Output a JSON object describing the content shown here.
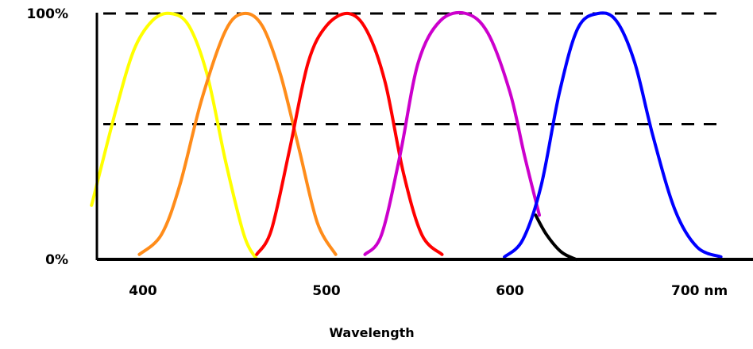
{
  "chart_data": {
    "type": "line",
    "title": "",
    "xlabel": "Wavelength",
    "ylabel": "",
    "x_unit": "nm",
    "xlim": [
      372,
      720
    ],
    "ylim": [
      0,
      100
    ],
    "x_ticks": [
      {
        "value": 400,
        "label": "400"
      },
      {
        "value": 500,
        "label": "500"
      },
      {
        "value": 600,
        "label": "600"
      },
      {
        "value": 700,
        "label": "700 nm"
      }
    ],
    "y_ticks": [
      {
        "value": 100,
        "label": "100%"
      },
      {
        "value": 0,
        "label": "0%"
      }
    ],
    "gridlines_y": [
      100,
      55
    ],
    "legend": "none",
    "series": [
      {
        "color": "#ffff00",
        "peak": 415,
        "x": [
          372,
          385,
          395,
          405,
          415,
          425,
          435,
          445,
          455,
          462
        ],
        "y": [
          22,
          60,
          85,
          97,
          100,
          95,
          75,
          40,
          10,
          0
        ]
      },
      {
        "color": "#ff8c1a",
        "peak": 455,
        "x": [
          398,
          410,
          420,
          432,
          445,
          455,
          465,
          475,
          485,
          495,
          505
        ],
        "y": [
          2,
          10,
          30,
          65,
          93,
          100,
          95,
          75,
          45,
          15,
          2
        ]
      },
      {
        "color": "#ff0000",
        "peak": 512,
        "x": [
          462,
          470,
          480,
          490,
          500,
          512,
          522,
          532,
          542,
          552,
          563
        ],
        "y": [
          2,
          12,
          45,
          80,
          95,
          100,
          93,
          72,
          35,
          10,
          2
        ]
      },
      {
        "color": "#cc00cc",
        "peak": 576,
        "x": [
          521,
          530,
          540,
          550,
          562,
          576,
          588,
          600,
          608,
          616
        ],
        "y": [
          2,
          10,
          42,
          80,
          97,
          100,
          92,
          68,
          42,
          18
        ]
      },
      {
        "color": "#000000",
        "peak": null,
        "x": [
          614,
          620,
          628,
          636
        ],
        "y": [
          18,
          10,
          3,
          0
        ]
      },
      {
        "color": "#0000ff",
        "peak": 648,
        "x": [
          597,
          607,
          617,
          627,
          637,
          648,
          658,
          668,
          678,
          690,
          702,
          715
        ],
        "y": [
          1,
          8,
          30,
          68,
          94,
          100,
          97,
          80,
          50,
          20,
          5,
          1
        ]
      }
    ]
  }
}
